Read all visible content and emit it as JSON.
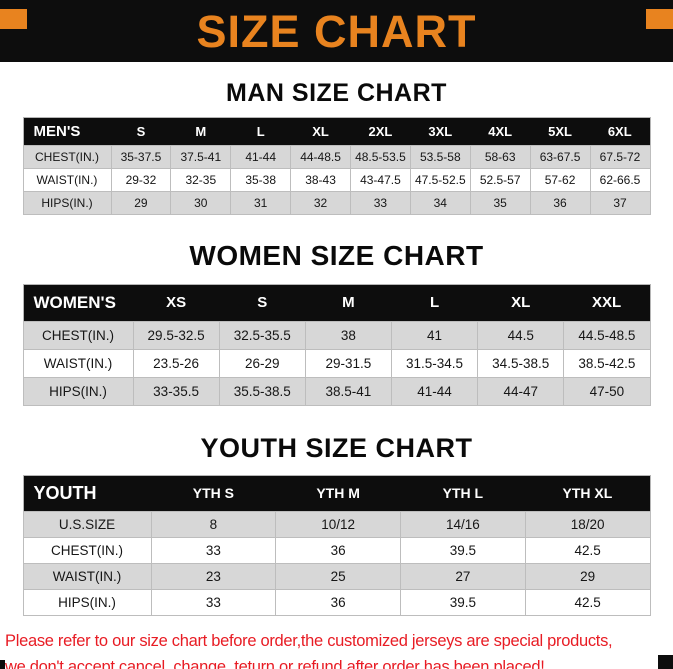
{
  "page": {
    "title": "SIZE CHART"
  },
  "men": {
    "title": "MAN SIZE CHART",
    "header": [
      "MEN'S",
      "S",
      "M",
      "L",
      "XL",
      "2XL",
      "3XL",
      "4XL",
      "5XL",
      "6XL"
    ],
    "rows": [
      [
        "CHEST(IN.)",
        "35-37.5",
        "37.5-41",
        "41-44",
        "44-48.5",
        "48.5-53.5",
        "53.5-58",
        "58-63",
        "63-67.5",
        "67.5-72"
      ],
      [
        "WAIST(IN.)",
        "29-32",
        "32-35",
        "35-38",
        "38-43",
        "43-47.5",
        "47.5-52.5",
        "52.5-57",
        "57-62",
        "62-66.5"
      ],
      [
        "HIPS(IN.)",
        "29",
        "30",
        "31",
        "32",
        "33",
        "34",
        "35",
        "36",
        "37"
      ]
    ]
  },
  "women": {
    "title": "WOMEN SIZE CHART",
    "header": [
      "WOMEN'S",
      "XS",
      "S",
      "M",
      "L",
      "XL",
      "XXL"
    ],
    "rows": [
      [
        "CHEST(IN.)",
        "29.5-32.5",
        "32.5-35.5",
        "38",
        "41",
        "44.5",
        "44.5-48.5"
      ],
      [
        "WAIST(IN.)",
        "23.5-26",
        "26-29",
        "29-31.5",
        "31.5-34.5",
        "34.5-38.5",
        "38.5-42.5"
      ],
      [
        "HIPS(IN.)",
        "33-35.5",
        "35.5-38.5",
        "38.5-41",
        "41-44",
        "44-47",
        "47-50"
      ]
    ]
  },
  "youth": {
    "title": "YOUTH SIZE CHART",
    "header": [
      "YOUTH",
      "YTH S",
      "YTH M",
      "YTH L",
      "YTH XL"
    ],
    "rows": [
      [
        "U.S.SIZE",
        "8",
        "10/12",
        "14/16",
        "18/20"
      ],
      [
        "CHEST(IN.)",
        "33",
        "36",
        "39.5",
        "42.5"
      ],
      [
        "WAIST(IN.)",
        "23",
        "25",
        "27",
        "29"
      ],
      [
        "HIPS(IN.)",
        "33",
        "36",
        "39.5",
        "42.5"
      ]
    ]
  },
  "footer": {
    "line1": "Please refer to our size chart before order,the customized jerseys are special products,",
    "line2": "we don't accept cancel, change, teturn or refund after order has been placed!"
  },
  "colors": {
    "accent_orange": "#e8831f",
    "banner_black": "#0d0d0d",
    "row_gray": "#d7d7d7",
    "footer_red": "#e81c24"
  }
}
